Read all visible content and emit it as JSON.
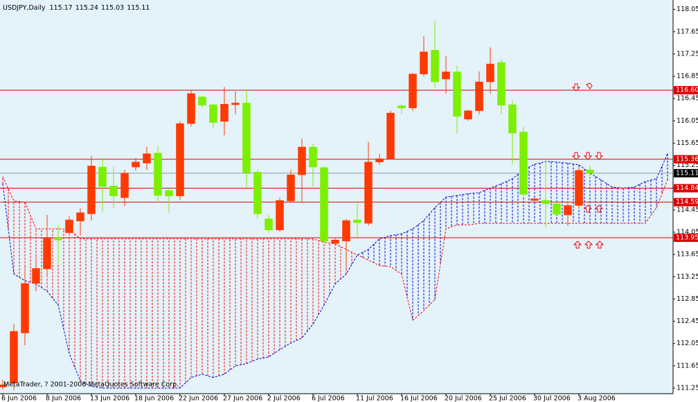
{
  "chart_data": {
    "type": "candlestick",
    "title": "USDJPY,Daily",
    "watermark": "MetaTrader, ? 2001-2006 MetaQuotes Software Corp.",
    "background": "#e4f2f9",
    "bull_color": "#ff3a00",
    "bear_color": "#7cf000",
    "categories": [
      "6 Jun 2006",
      null,
      null,
      null,
      "8 Jun 2006",
      null,
      null,
      null,
      "13 Jun 2006",
      null,
      null,
      null,
      "18 Jun 2006",
      null,
      null,
      null,
      "22 Jun 2006",
      null,
      null,
      null,
      "27 Jun 2006",
      null,
      null,
      null,
      "2 Jul 2006",
      null,
      null,
      null,
      "6 Jul 2006",
      null,
      null,
      null,
      "11 Jul 2006",
      null,
      null,
      null,
      "16 Jul 2006",
      null,
      null,
      null,
      "20 Jul 2006",
      null,
      null,
      null,
      "25 Jul 2006",
      null,
      null,
      null,
      "30 Jul 2006",
      null,
      null,
      null,
      "3 Aug 2006",
      null
    ],
    "open": [
      111.27,
      111.34,
      112.24,
      113.13,
      113.39,
      113.95,
      114.04,
      114.25,
      114.38,
      115.22,
      114.88,
      114.67,
      115.22,
      115.29,
      115.47,
      114.8,
      114.7,
      116.0,
      116.48,
      116.34,
      116.04,
      116.34,
      116.37,
      115.13,
      114.29,
      114.09,
      114.61,
      115.08,
      115.58,
      115.21,
      113.85,
      113.89,
      114.27,
      114.21,
      115.31,
      115.37,
      116.32,
      116.28,
      116.89,
      117.32,
      116.8,
      116.93,
      116.08,
      116.23,
      116.75,
      117.1,
      116.34,
      115.85,
      114.62,
      114.62,
      114.56,
      114.36,
      114.53,
      115.17
    ],
    "high": [
      111.4,
      112.4,
      113.43,
      113.61,
      114.36,
      114.17,
      114.34,
      114.48,
      115.42,
      115.38,
      115.23,
      115.17,
      115.38,
      115.58,
      115.61,
      114.86,
      116.04,
      116.6,
      116.51,
      116.35,
      116.66,
      116.58,
      116.6,
      115.17,
      114.36,
      114.67,
      115.17,
      115.73,
      115.64,
      115.23,
      113.95,
      114.29,
      114.61,
      115.67,
      115.46,
      116.23,
      116.35,
      116.91,
      117.57,
      117.85,
      117.22,
      117.04,
      116.25,
      116.94,
      117.37,
      117.16,
      116.41,
      115.94,
      114.67,
      115.33,
      114.6,
      114.61,
      115.23,
      115.24
    ],
    "low": [
      111.22,
      111.22,
      112.02,
      112.99,
      113.24,
      113.49,
      113.99,
      113.99,
      114.26,
      114.42,
      114.48,
      114.52,
      115.16,
      115.17,
      114.58,
      114.4,
      114.63,
      115.95,
      116.29,
      115.92,
      115.79,
      116.17,
      114.85,
      114.3,
      114.04,
      114.06,
      114.58,
      114.58,
      114.86,
      113.84,
      113.84,
      113.39,
      113.92,
      114.17,
      115.26,
      115.36,
      116.17,
      116.23,
      116.85,
      116.63,
      116.54,
      115.82,
      116.05,
      116.17,
      116.54,
      116.17,
      115.27,
      114.7,
      114.62,
      114.14,
      114.36,
      114.17,
      114.48,
      115.03
    ],
    "close": [
      111.31,
      112.27,
      113.13,
      113.4,
      113.94,
      113.91,
      114.27,
      114.4,
      115.24,
      114.87,
      114.7,
      115.11,
      115.31,
      115.46,
      114.71,
      114.7,
      116.0,
      116.54,
      116.33,
      116.02,
      116.35,
      116.37,
      115.12,
      114.38,
      114.09,
      114.62,
      115.08,
      115.58,
      115.22,
      113.89,
      113.91,
      114.26,
      114.22,
      115.31,
      115.37,
      116.19,
      116.28,
      116.89,
      117.29,
      116.75,
      116.93,
      116.13,
      116.23,
      116.75,
      117.07,
      116.33,
      115.83,
      114.73,
      114.65,
      114.56,
      114.37,
      114.53,
      115.16,
      115.11
    ],
    "span_a": {
      "color": "#0000cc",
      "values": [
        114.92,
        113.3,
        113.18,
        113.12,
        112.99,
        112.74,
        111.87,
        111.38,
        111.28,
        111.25,
        111.25,
        111.25,
        111.25,
        111.25,
        111.25,
        111.25,
        111.25,
        111.44,
        111.5,
        111.44,
        111.5,
        111.65,
        111.69,
        111.77,
        111.81,
        111.94,
        112.06,
        112.15,
        112.4,
        112.74,
        113.12,
        113.3,
        113.64,
        113.74,
        113.93,
        113.99,
        114.02,
        114.11,
        114.26,
        114.49,
        114.68,
        114.71,
        114.74,
        114.76,
        114.84,
        114.92,
        115.01,
        115.17,
        115.27,
        115.32,
        115.31,
        115.29,
        115.26,
        115.11,
        114.99,
        114.86,
        114.84,
        114.86,
        114.96,
        115.01,
        115.46
      ]
    },
    "span_b": {
      "color": "#ff0000",
      "values": [
        115.05,
        114.61,
        114.59,
        114.11,
        114.11,
        114.11,
        114.11,
        113.93,
        113.93,
        113.93,
        113.93,
        113.93,
        113.93,
        113.93,
        113.93,
        113.93,
        113.93,
        113.93,
        113.93,
        113.93,
        113.93,
        113.93,
        113.93,
        113.93,
        113.93,
        113.93,
        113.93,
        113.93,
        113.93,
        113.87,
        113.84,
        113.74,
        113.64,
        113.55,
        113.45,
        113.43,
        113.3,
        112.47,
        112.64,
        112.84,
        114.11,
        114.18,
        114.18,
        114.21,
        114.21,
        114.21,
        114.21,
        114.21,
        114.21,
        114.21,
        114.21,
        114.21,
        114.21,
        114.21,
        114.21,
        114.21,
        114.21,
        114.21,
        114.21,
        114.49,
        114.99
      ]
    },
    "levels": [
      {
        "value": 116.6,
        "label": "116.60"
      },
      115.36,
      114.84,
      114.59,
      113.95
    ],
    "level_color": "#dd0000",
    "price_line_color": "#8a9aa4",
    "ylim": [
      111.15,
      118.22
    ],
    "yticks": [
      118.05,
      117.65,
      117.25,
      116.85,
      116.45,
      116.05,
      115.65,
      115.25,
      114.85,
      114.45,
      114.05,
      113.65,
      113.25,
      112.85,
      112.45,
      112.05,
      111.65,
      111.25
    ],
    "grid": false
  }
}
